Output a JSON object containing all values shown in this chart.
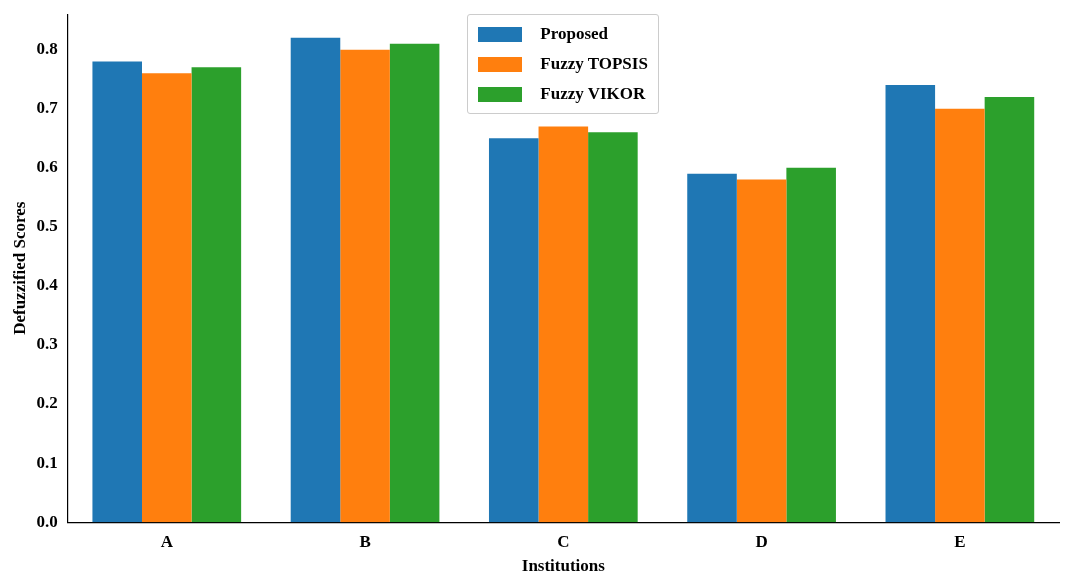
{
  "chart_data": {
    "type": "bar",
    "xlabel": "Institutions",
    "ylabel": "Defuzzified Scores",
    "categories": [
      "A",
      "B",
      "C",
      "D",
      "E"
    ],
    "series": [
      {
        "name": "Proposed",
        "color": "#1f77b4",
        "values": [
          0.78,
          0.82,
          0.65,
          0.59,
          0.74
        ]
      },
      {
        "name": "Fuzzy TOPSIS",
        "color": "#ff7f0e",
        "values": [
          0.76,
          0.8,
          0.67,
          0.58,
          0.7
        ]
      },
      {
        "name": "Fuzzy VIKOR",
        "color": "#2ca02c",
        "values": [
          0.77,
          0.81,
          0.66,
          0.6,
          0.72
        ]
      }
    ],
    "ylim": [
      0,
      0.86
    ],
    "yticks": [
      {
        "value": 0,
        "label": "0.0"
      },
      {
        "value": 0.1,
        "label": "0.1"
      },
      {
        "value": 0.2,
        "label": "0.2"
      },
      {
        "value": 0.3,
        "label": "0.3"
      },
      {
        "value": 0.4,
        "label": "0.4"
      },
      {
        "value": 0.5,
        "label": "0.5"
      },
      {
        "value": 0.6,
        "label": "0.6"
      },
      {
        "value": 0.7,
        "label": "0.7"
      },
      {
        "value": 0.8,
        "label": "0.8"
      }
    ],
    "grid": false,
    "legend": "top"
  }
}
